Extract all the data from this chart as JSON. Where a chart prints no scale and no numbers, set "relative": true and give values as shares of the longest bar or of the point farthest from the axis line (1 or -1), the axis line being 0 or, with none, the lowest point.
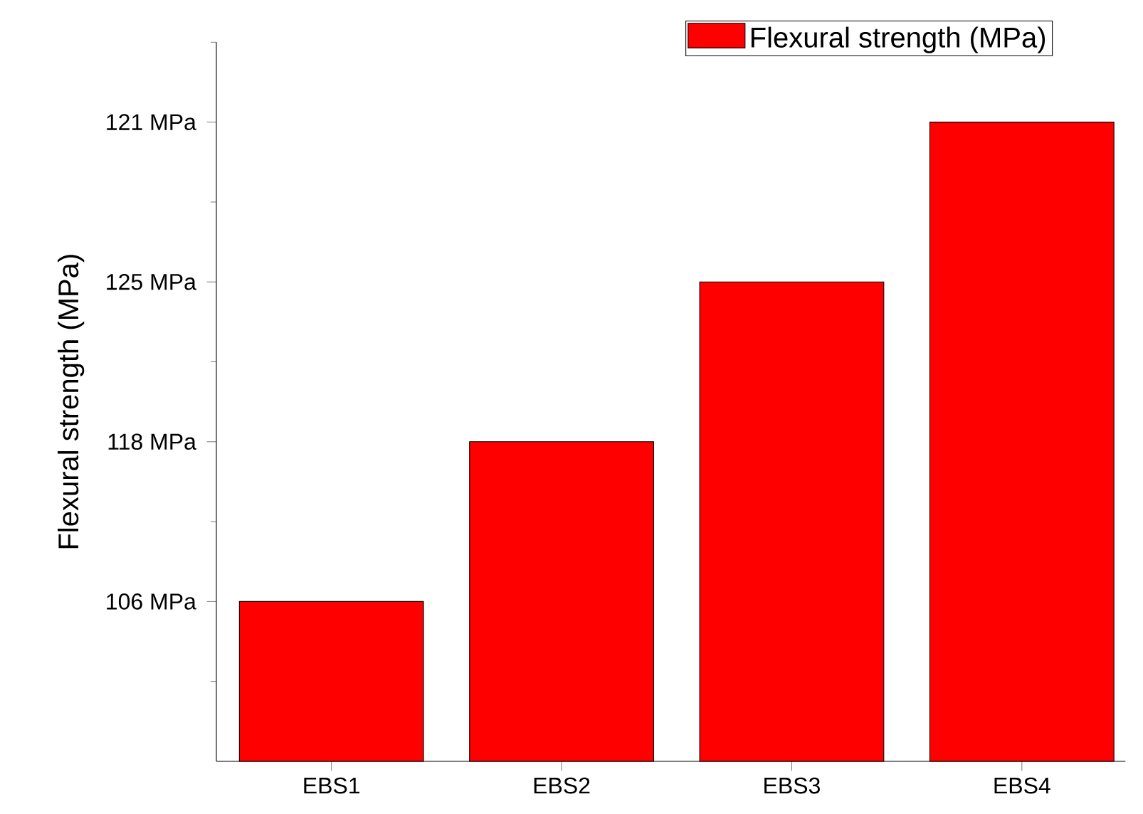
{
  "chart_data": {
    "type": "bar",
    "ylabel": "Flexural strength (MPa)",
    "relative": true,
    "categories": [
      "EBS1",
      "EBS2",
      "EBS3",
      "EBS4"
    ],
    "series": [
      {
        "name": "Flexural strength (MPa)",
        "color": "#ff0000",
        "values": [
          0.25,
          0.5,
          0.75,
          1
        ]
      }
    ],
    "annotations": [
      "106 MPa",
      "118 MPa",
      "125 MPa",
      "121 MPa"
    ],
    "legend": "top right"
  }
}
